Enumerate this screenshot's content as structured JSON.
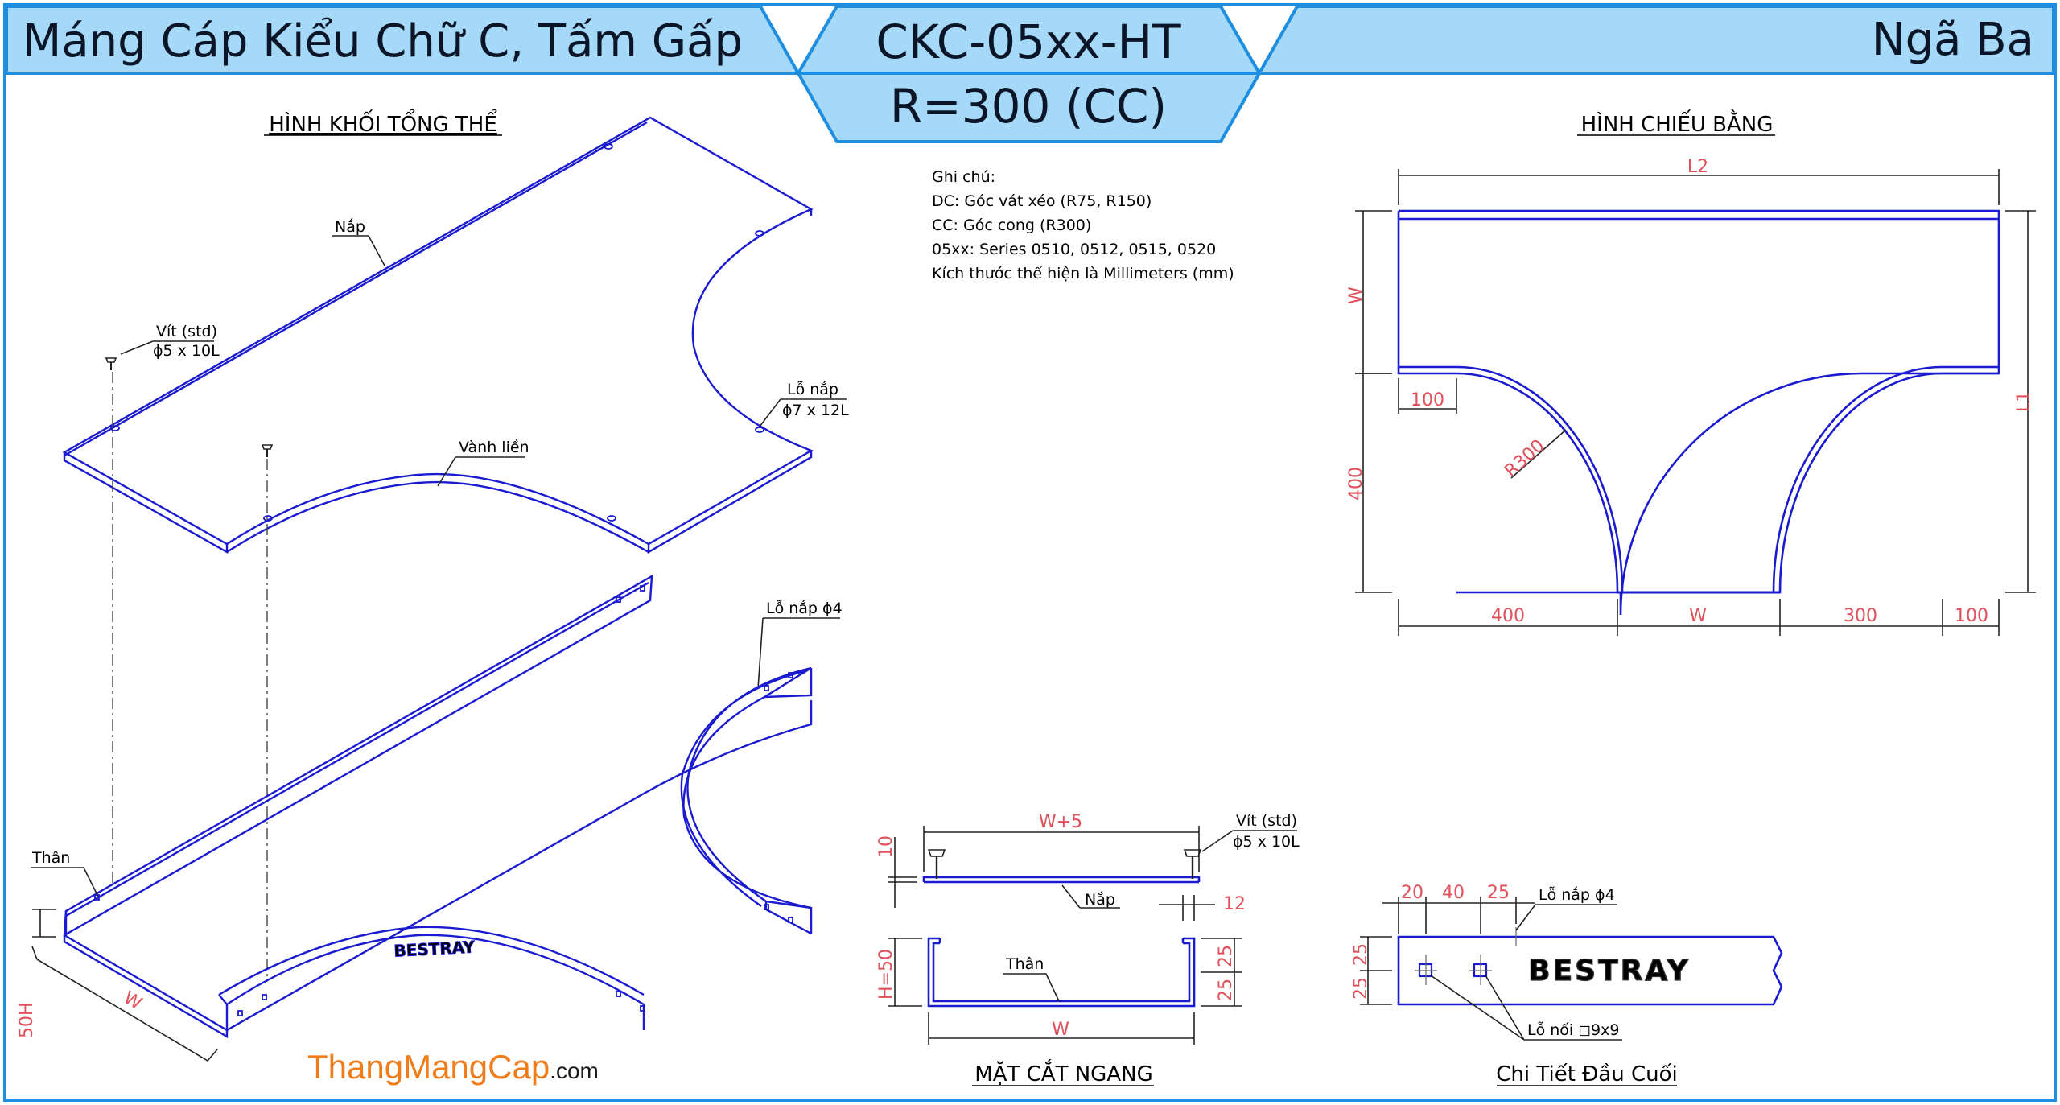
{
  "header": {
    "title_left": "Máng Cáp Kiểu Chữ C, Tấm Gấp",
    "model_code": "CKC-05xx-HT",
    "radius": "R=300 (CC)",
    "title_right": "Ngã Ba",
    "colors": {
      "band": "#a6d8f7",
      "border": "#1e8fe0",
      "geometry": "#1a1ad0",
      "dimension": "#e0505a"
    }
  },
  "iso_view": {
    "title": "HÌNH KHỐI TỔNG THỂ",
    "lbl_nap": "Nắp",
    "lbl_vit": "Vít (std)",
    "lbl_vit_size": "ϕ5 x 10L",
    "lbl_lo_nap": "Lỗ nắp",
    "lbl_lo_nap_size": "ϕ7 x 12L",
    "lbl_vanh_lien": "Vành liền",
    "lbl_lo_nap4": "Lỗ nắp ϕ4",
    "lbl_than": "Thân",
    "dim_h": "50H",
    "dim_w": "W",
    "brand_mark": "BESTRAY"
  },
  "notes": {
    "heading": "Ghi chú:",
    "lines": [
      "DC: Góc vát xéo (R75, R150)",
      "CC: Góc cong (R300)",
      "05xx: Series 0510, 0512, 0515, 0520",
      "Kích thước thể hiện là Millimeters (mm)"
    ]
  },
  "plan_view": {
    "title": "HÌNH CHIẾU BẰNG",
    "dim_l2": "L2",
    "dim_w_side": "W",
    "dim_l1": "L1",
    "dim_100_top": "100",
    "dim_r300": "R300",
    "dim_400_side": "400",
    "dim_400_bottom": "400",
    "dim_w_bottom": "W",
    "dim_300": "300",
    "dim_100_bottom": "100"
  },
  "section_view": {
    "title": "MẶT CẮT NGANG",
    "dim_w5": "W+5",
    "dim_10": "10",
    "dim_h50": "H=50",
    "dim_12": "12",
    "dim_25a": "25",
    "dim_25b": "25",
    "dim_w": "W",
    "lbl_vit": "Vít (std)",
    "lbl_vit_size": "ϕ5 x 10L",
    "lbl_nap": "Nắp",
    "lbl_than": "Thân"
  },
  "end_detail": {
    "title": "Chi Tiết Đầu Cuối",
    "dim_20": "20",
    "dim_40": "40",
    "dim_25": "25",
    "dim_25a": "25",
    "dim_25b": "25",
    "lbl_lo_nap4": "Lỗ nắp ϕ4",
    "lbl_lo_noi": "Lỗ nối ◻9x9",
    "brand_mark": "BESTRAY"
  },
  "footer": {
    "brand_main": "ThangMangCap",
    "brand_suffix": ".com"
  }
}
